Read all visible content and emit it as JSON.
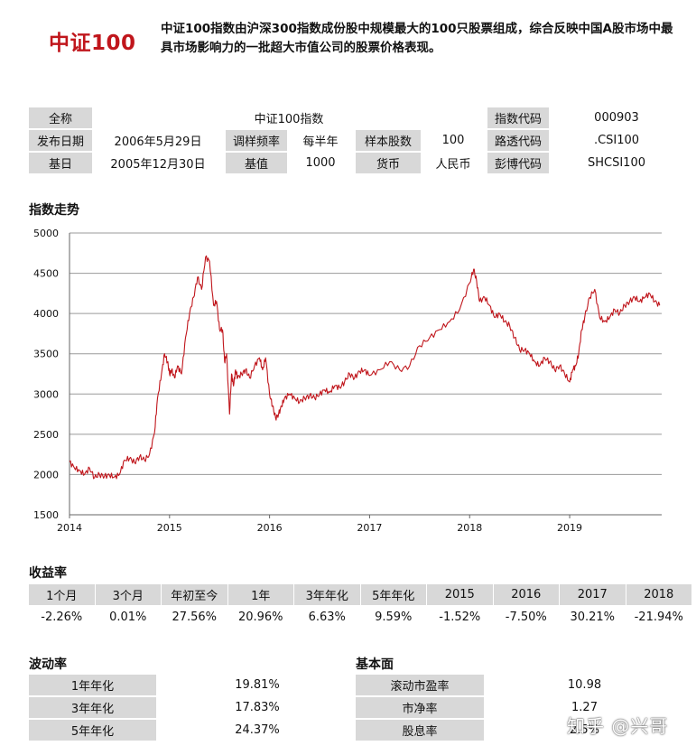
{
  "header": {
    "brand": "中证100",
    "description": "中证100指数由沪深300指数成份股中规模最大的100只股票组成，综合反映中国A股市场中最具市场影响力的一批超大市值公司的股票价格表现。"
  },
  "info": {
    "full_name_label": "全称",
    "full_name": "中证100指数",
    "code_label": "指数代码",
    "code": "000903",
    "release_label": "发布日期",
    "release": "2006年5月29日",
    "rebalance_label": "调样频率",
    "rebalance": "每半年",
    "sample_label": "样本股数",
    "sample": "100",
    "reuters_label": "路透代码",
    "reuters": ".CSI100",
    "base_date_label": "基日",
    "base_date": "2005年12月30日",
    "base_value_label": "基值",
    "base_value": "1000",
    "currency_label": "货币",
    "currency": "人民币",
    "bloomberg_label": "彭博代码",
    "bloomberg": "SHCSI100"
  },
  "trend": {
    "title": "指数走势"
  },
  "chart_data": {
    "type": "line",
    "title": "",
    "xlabel": "",
    "ylabel": "",
    "xlim": [
      2014.0,
      2019.92
    ],
    "ylim": [
      1500,
      5000
    ],
    "yticks": [
      1500,
      2000,
      2500,
      3000,
      3500,
      4000,
      4500,
      5000
    ],
    "xticks": [
      2014,
      2015,
      2016,
      2017,
      2018,
      2019
    ],
    "grid": "horizontal",
    "color": "#c0161c",
    "series": [
      {
        "x": [
          2014.0,
          2014.05,
          2014.1,
          2014.15,
          2014.2,
          2014.25,
          2014.3,
          2014.35,
          2014.4,
          2014.45,
          2014.5,
          2014.55,
          2014.6,
          2014.65,
          2014.7,
          2014.75,
          2014.8,
          2014.85,
          2014.88,
          2014.92,
          2014.95,
          2014.98,
          2015.0,
          2015.02,
          2015.05,
          2015.08,
          2015.12,
          2015.16,
          2015.2,
          2015.24,
          2015.28,
          2015.32,
          2015.36,
          2015.4,
          2015.44,
          2015.47,
          2015.5,
          2015.53,
          2015.55,
          2015.57,
          2015.6,
          2015.62,
          2015.64,
          2015.66,
          2015.68,
          2015.72,
          2015.76,
          2015.8,
          2015.85,
          2015.9,
          2015.93,
          2015.96,
          2016.0,
          2016.03,
          2016.06,
          2016.09,
          2016.12,
          2016.15,
          2016.2,
          2016.25,
          2016.3,
          2016.35,
          2016.4,
          2016.45,
          2016.5,
          2016.55,
          2016.6,
          2016.65,
          2016.7,
          2016.75,
          2016.8,
          2016.85,
          2016.9,
          2016.95,
          2017.0,
          2017.1,
          2017.2,
          2017.3,
          2017.4,
          2017.5,
          2017.6,
          2017.7,
          2017.8,
          2017.9,
          2018.0,
          2018.04,
          2018.07,
          2018.1,
          2018.15,
          2018.2,
          2018.25,
          2018.3,
          2018.35,
          2018.4,
          2018.45,
          2018.5,
          2018.55,
          2018.6,
          2018.65,
          2018.7,
          2018.75,
          2018.8,
          2018.85,
          2018.9,
          2018.95,
          2019.0,
          2019.03,
          2019.06,
          2019.09,
          2019.12,
          2019.15,
          2019.2,
          2019.25,
          2019.3,
          2019.35,
          2019.4,
          2019.45,
          2019.5,
          2019.55,
          2019.6,
          2019.65,
          2019.7,
          2019.75,
          2019.8,
          2019.85,
          2019.9
        ],
        "values": [
          2160,
          2080,
          2050,
          2000,
          2080,
          1960,
          2000,
          1980,
          1990,
          1970,
          2000,
          2180,
          2200,
          2150,
          2220,
          2180,
          2250,
          2520,
          2950,
          3250,
          3500,
          3400,
          3250,
          3300,
          3200,
          3350,
          3250,
          3700,
          4000,
          4200,
          4450,
          4300,
          4700,
          4650,
          4100,
          4150,
          3800,
          3800,
          3400,
          3500,
          2750,
          3250,
          3100,
          3300,
          3200,
          3250,
          3300,
          3200,
          3350,
          3450,
          3300,
          3450,
          3000,
          2850,
          2700,
          2750,
          2850,
          2950,
          3000,
          2950,
          2900,
          2950,
          2980,
          2950,
          3000,
          3050,
          3020,
          3100,
          3080,
          3150,
          3250,
          3200,
          3280,
          3300,
          3230,
          3300,
          3400,
          3300,
          3350,
          3600,
          3700,
          3800,
          3900,
          4050,
          4380,
          4550,
          4400,
          4150,
          4200,
          4100,
          3950,
          4000,
          3900,
          3850,
          3700,
          3550,
          3550,
          3500,
          3400,
          3350,
          3450,
          3400,
          3300,
          3350,
          3250,
          3150,
          3300,
          3350,
          3500,
          3800,
          3950,
          4200,
          4300,
          3950,
          3900,
          3950,
          4050,
          4000,
          4100,
          4150,
          4200,
          4150,
          4200,
          4250,
          4150,
          4100
        ]
      }
    ]
  },
  "returns": {
    "title": "收益率",
    "headers": [
      "1个月",
      "3个月",
      "年初至今",
      "1年",
      "3年年化",
      "5年年化",
      "2015",
      "2016",
      "2017",
      "2018"
    ],
    "values": [
      "-2.26%",
      "0.01%",
      "27.56%",
      "20.96%",
      "6.63%",
      "9.59%",
      "-1.52%",
      "-7.50%",
      "30.21%",
      "-21.94%"
    ]
  },
  "volatility": {
    "title": "波动率",
    "rows": [
      {
        "label": "1年年化",
        "value": "19.81%"
      },
      {
        "label": "3年年化",
        "value": "17.83%"
      },
      {
        "label": "5年年化",
        "value": "24.37%"
      }
    ]
  },
  "fundamentals": {
    "title": "基本面",
    "rows": [
      {
        "label": "滚动市盈率",
        "value": "10.98"
      },
      {
        "label": "市净率",
        "value": "1.27"
      },
      {
        "label": "股息率",
        "value": "2.5%"
      }
    ]
  },
  "watermark": "知乎 @兴哥"
}
